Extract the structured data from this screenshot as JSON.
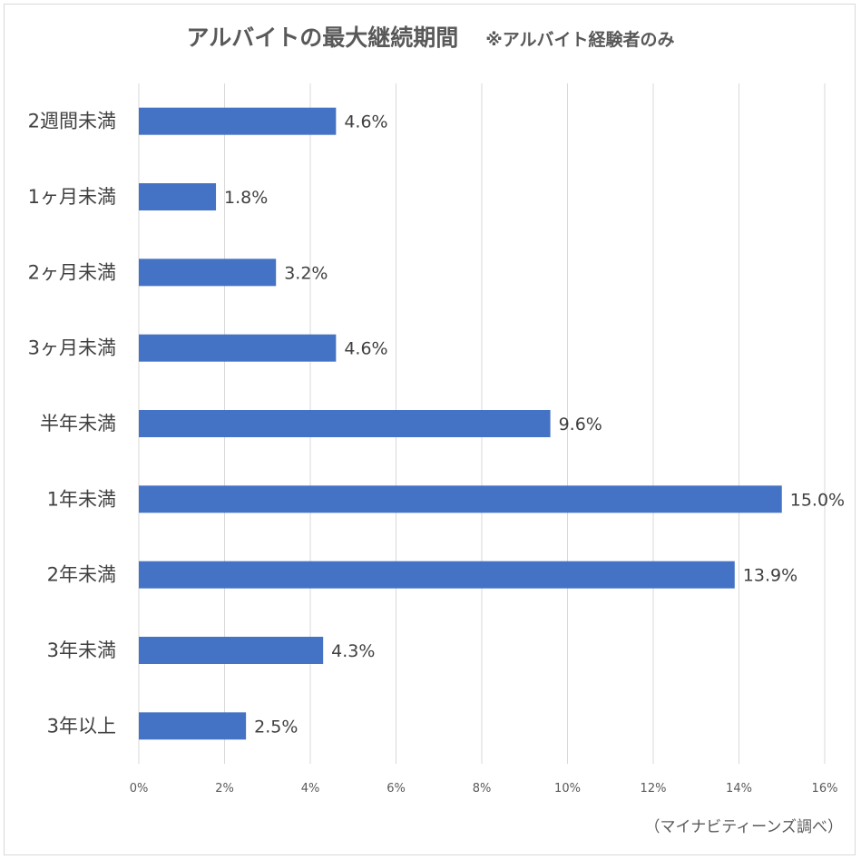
{
  "chart_data": {
    "type": "bar",
    "orientation": "horizontal",
    "title": "アルバイトの最大継続期間",
    "subtitle": "※アルバイト経験者のみ",
    "categories": [
      "2週間未満",
      "1ヶ月未満",
      "2ヶ月未満",
      "3ヶ月未満",
      "半年未満",
      "1年未満",
      "2年未満",
      "3年未満",
      "3年以上"
    ],
    "values": [
      4.6,
      1.8,
      3.2,
      4.6,
      9.6,
      15.0,
      13.9,
      4.3,
      2.5
    ],
    "value_labels": [
      "4.6%",
      "1.8%",
      "3.2%",
      "4.6%",
      "9.6%",
      "15.0%",
      "13.9%",
      "4.3%",
      "2.5%"
    ],
    "xlim": [
      0,
      16
    ],
    "x_ticks": [
      0,
      2,
      4,
      6,
      8,
      10,
      12,
      14,
      16
    ],
    "x_tick_labels": [
      "0%",
      "2%",
      "4%",
      "6%",
      "8%",
      "10%",
      "12%",
      "14%",
      "16%"
    ],
    "grid": true,
    "legend": "none",
    "bar_color": "#4472c4",
    "source_note": "（マイナビティーンズ調べ）"
  }
}
